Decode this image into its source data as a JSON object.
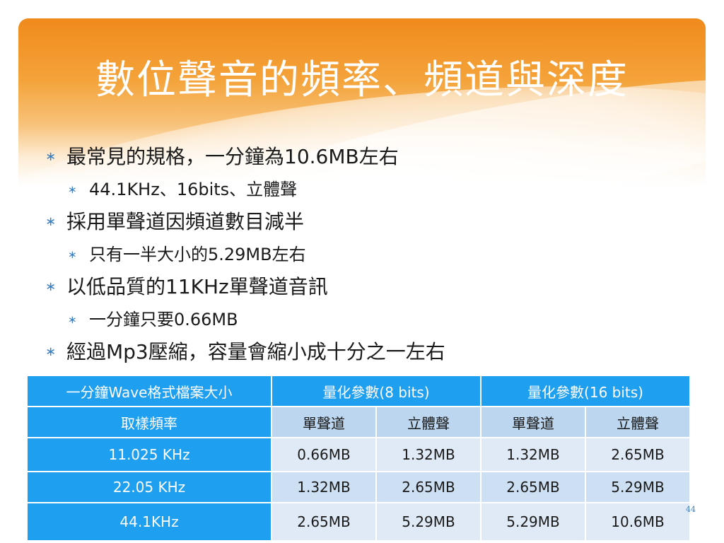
{
  "title": "數位聲音的頻率、頻道與深度",
  "bullet_char": "∗",
  "bullets": [
    {
      "text": "最常見的規格，一分鐘為10.6MB左右",
      "level": 1
    },
    {
      "text": "44.1KHz、16bits、立體聲",
      "level": 2
    },
    {
      "text": "採用單聲道因頻道數目減半",
      "level": 1
    },
    {
      "text": "只有一半大小的5.29MB左右",
      "level": 2
    },
    {
      "text": "以低品質的11KHz單聲道音訊",
      "level": 1
    },
    {
      "text": "一分鐘只要0.66MB",
      "level": 2
    },
    {
      "text": "經過Mp3壓縮，容量會縮小成十分之一左右",
      "level": 1
    }
  ],
  "table": {
    "header": [
      "一分鐘Wave格式檔案大小",
      "量化參數(8 bits)",
      "量化參數(16 bits)"
    ],
    "subheader": [
      "取樣頻率",
      "單聲道",
      "立體聲",
      "單聲道",
      "立體聲"
    ],
    "rows": [
      [
        "11.025 KHz",
        "0.66MB",
        "1.32MB",
        "1.32MB",
        "2.65MB"
      ],
      [
        "22.05 KHz",
        "1.32MB",
        "2.65MB",
        "2.65MB",
        "5.29MB"
      ],
      [
        "44.1KHz",
        "2.65MB",
        "5.29MB",
        "5.29MB",
        "10.6MB"
      ]
    ]
  },
  "page_number": "44",
  "colors": {
    "banner_orange": "#f08a1c",
    "table_header_blue": "#1f9fef",
    "bullet_blue": "#3b7fc4",
    "cell_light": "#dfeaf6"
  }
}
